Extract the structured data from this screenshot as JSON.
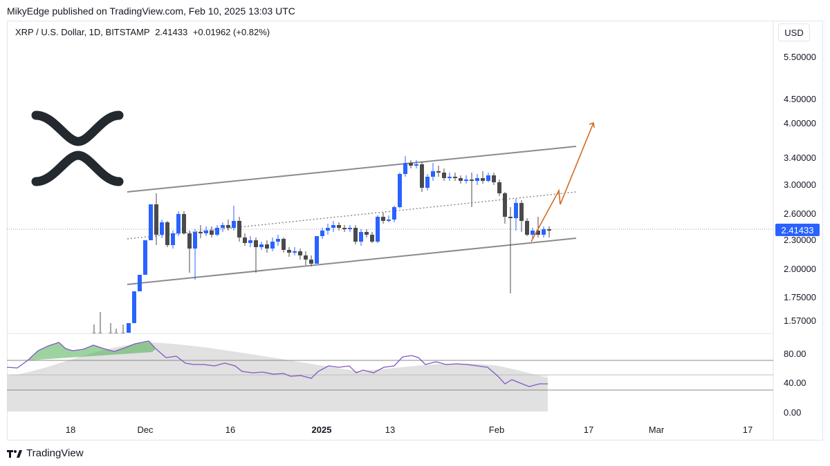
{
  "publisher": "MikyEdge published on TradingView.com, Feb 10, 2025 13:03 UTC",
  "symbol": {
    "name": "XRP / U.S. Dollar, 1D, BITSTAMP",
    "price": "2.41433",
    "change": "+0.01962 (+0.82%)"
  },
  "currency_button": "USD",
  "price_axis": [
    "5.50000",
    "4.50000",
    "4.00000",
    "3.40000",
    "3.00000",
    "2.60000",
    "2.30000",
    "2.00000",
    "1.75000",
    "1.57000"
  ],
  "current_price_tag": "2.41433",
  "rsi_axis": [
    "80.00",
    "40.00",
    "0.00"
  ],
  "time_axis": [
    {
      "label": "18",
      "bold": false
    },
    {
      "label": "Dec",
      "bold": false
    },
    {
      "label": "16",
      "bold": false
    },
    {
      "label": "2025",
      "bold": true
    },
    {
      "label": "13",
      "bold": false
    },
    {
      "label": "Feb",
      "bold": false
    },
    {
      "label": "17",
      "bold": false
    },
    {
      "label": "Mar",
      "bold": false
    },
    {
      "label": "17",
      "bold": false
    }
  ],
  "brand": "TradingView",
  "colors": {
    "bull": "#2962ff",
    "bear": "#4a4a4a",
    "channel": "#8a8a8a",
    "projection": "#d2691e",
    "rsi_line": "#7e57c2",
    "rsi_fill_over": "#4caf50"
  },
  "icons": [
    "xrp-logo-icon",
    "tradingview-logo-icon"
  ]
}
